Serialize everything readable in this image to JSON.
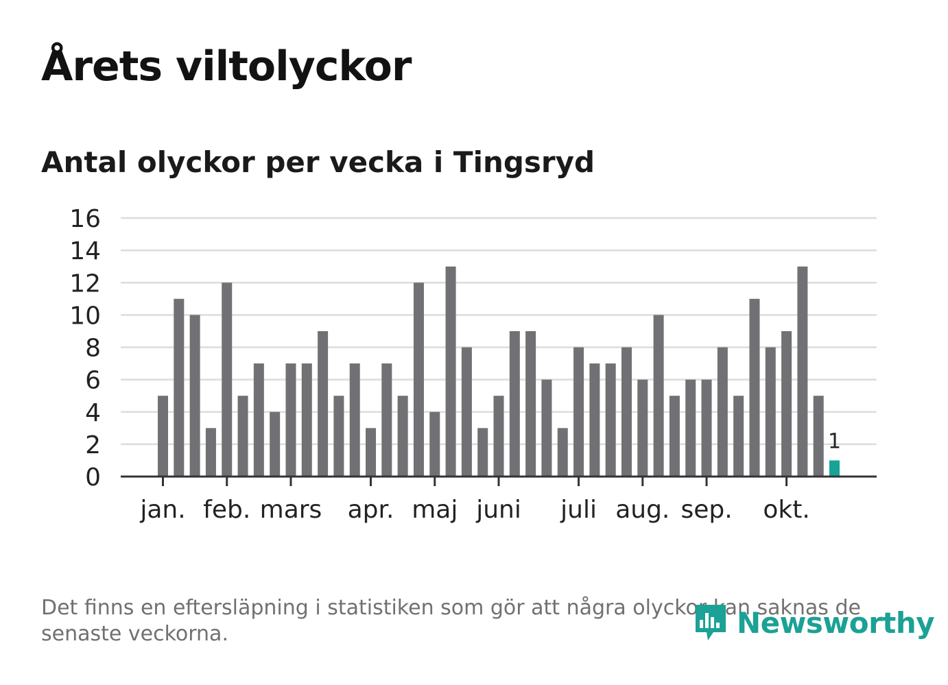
{
  "header": {
    "title": "Årets viltolyckor",
    "subtitle": "Antal olyckor per vecka i Tingsryd"
  },
  "footnote": "Det finns en eftersläpning i statistiken som gör att några olyckor kan saknas de senaste veckorna.",
  "logo": {
    "text": "Newsworthy"
  },
  "colors": {
    "bar": "#707075",
    "highlight": "#19a394",
    "grid": "#dcdcdc",
    "axis": "#333333",
    "text": "#222222"
  },
  "chart_data": {
    "type": "bar",
    "title": "Antal olyckor per vecka i Tingsryd",
    "xlabel": "",
    "ylabel": "",
    "ylim": [
      0,
      16
    ],
    "yticks": [
      0,
      2,
      4,
      6,
      8,
      10,
      12,
      14,
      16
    ],
    "grid": true,
    "weeks": [
      1,
      2,
      3,
      4,
      5,
      6,
      7,
      8,
      9,
      10,
      11,
      12,
      13,
      14,
      15,
      16,
      17,
      18,
      19,
      20,
      21,
      22,
      23,
      24,
      25,
      26,
      27,
      28,
      29,
      30,
      31,
      32,
      33,
      34,
      35,
      36,
      37,
      38,
      39,
      40,
      41,
      42,
      43
    ],
    "values": [
      5,
      11,
      10,
      3,
      12,
      5,
      7,
      4,
      7,
      7,
      9,
      5,
      7,
      3,
      7,
      5,
      12,
      4,
      13,
      8,
      3,
      5,
      9,
      9,
      6,
      3,
      8,
      7,
      7,
      8,
      6,
      10,
      5,
      6,
      6,
      8,
      5,
      11,
      8,
      9,
      13,
      5,
      1
    ],
    "highlight_index": 42,
    "highlight_label": "1",
    "month_ticks": [
      {
        "label": "jan.",
        "week": 1.5
      },
      {
        "label": "feb.",
        "week": 5.5
      },
      {
        "label": "mars",
        "week": 9.5
      },
      {
        "label": "apr.",
        "week": 14.5
      },
      {
        "label": "maj",
        "week": 18.5
      },
      {
        "label": "juni",
        "week": 22.5
      },
      {
        "label": "juli",
        "week": 27.5
      },
      {
        "label": "aug.",
        "week": 31.5
      },
      {
        "label": "sep.",
        "week": 35.5
      },
      {
        "label": "okt.",
        "week": 40.5
      }
    ]
  }
}
